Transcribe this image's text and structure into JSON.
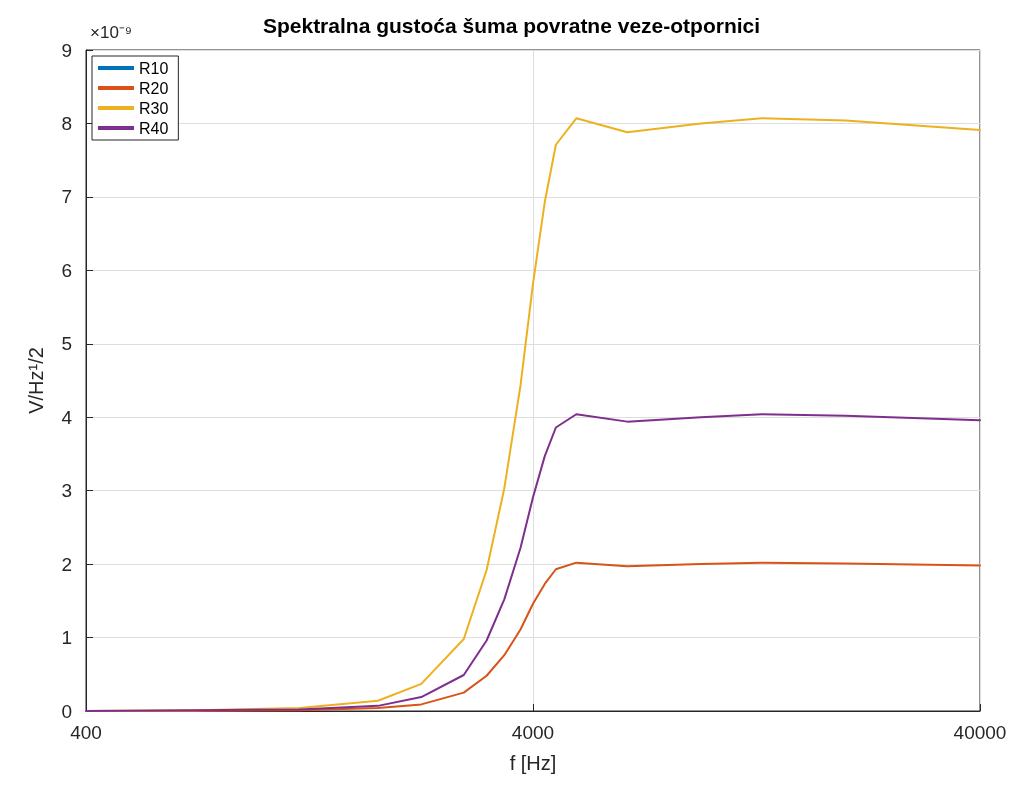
{
  "chart_data": {
    "type": "line",
    "title": "Spektralna gustoća šuma povratne veze-otpornici",
    "xlabel": "f [Hz]",
    "ylabel": "V/Hz¹/2",
    "annotations": [
      "×10⁻⁹"
    ],
    "x": [
      400,
      700,
      1200,
      1800,
      2250,
      2800,
      3150,
      3450,
      3750,
      4000,
      4250,
      4500,
      5000,
      6500,
      9500,
      13000,
      20000,
      40000
    ],
    "series": [
      {
        "name": "R10",
        "color": "#0072bd",
        "values": [
          null,
          null,
          null,
          null,
          null,
          null,
          null,
          null,
          null,
          null,
          null,
          null,
          null,
          null,
          null,
          null,
          null,
          null
        ]
      },
      {
        "name": "R20",
        "color": "#d95319",
        "values": [
          0,
          0,
          0.01,
          0.04,
          0.09,
          0.25,
          0.48,
          0.76,
          1.11,
          1.46,
          1.73,
          1.93,
          2.02,
          1.97,
          2.0,
          2.02,
          2.01,
          1.98
        ]
      },
      {
        "name": "R30",
        "color": "#edb120",
        "values": [
          0,
          0.01,
          0.04,
          0.14,
          0.37,
          0.98,
          1.92,
          3.03,
          4.43,
          5.82,
          6.93,
          7.71,
          8.07,
          7.88,
          8.0,
          8.07,
          8.04,
          7.91
        ]
      },
      {
        "name": "R40",
        "color": "#7e2f8e",
        "values": [
          0,
          0.01,
          0.02,
          0.07,
          0.19,
          0.49,
          0.96,
          1.52,
          2.22,
          2.91,
          3.47,
          3.86,
          4.04,
          3.94,
          4.0,
          4.04,
          4.02,
          3.96
        ]
      }
    ],
    "xlim": [
      400,
      40000
    ],
    "xticks": [
      400,
      4000,
      40000
    ],
    "ylim": [
      0,
      9
    ],
    "yticks": [
      0,
      1,
      2,
      3,
      4,
      5,
      6,
      7,
      8,
      9
    ],
    "log": "x",
    "grid": true,
    "legend": "top left",
    "marker": "none",
    "line_style": "solid"
  }
}
